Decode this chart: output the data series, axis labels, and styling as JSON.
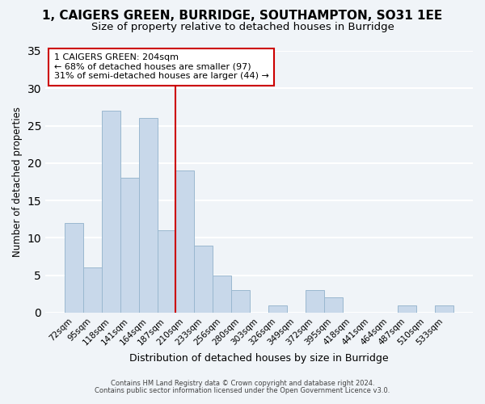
{
  "title1": "1, CAIGERS GREEN, BURRIDGE, SOUTHAMPTON, SO31 1EE",
  "title2": "Size of property relative to detached houses in Burridge",
  "xlabel": "Distribution of detached houses by size in Burridge",
  "ylabel": "Number of detached properties",
  "bar_labels": [
    "72sqm",
    "95sqm",
    "118sqm",
    "141sqm",
    "164sqm",
    "187sqm",
    "210sqm",
    "233sqm",
    "256sqm",
    "280sqm",
    "303sqm",
    "326sqm",
    "349sqm",
    "372sqm",
    "395sqm",
    "418sqm",
    "441sqm",
    "464sqm",
    "487sqm",
    "510sqm",
    "533sqm"
  ],
  "bar_values": [
    12,
    6,
    27,
    18,
    26,
    11,
    19,
    9,
    5,
    3,
    0,
    1,
    0,
    3,
    2,
    0,
    0,
    0,
    1,
    0,
    1
  ],
  "bar_color": "#c8d8ea",
  "bar_edge_color": "#9ab8d0",
  "vline_color": "#cc0000",
  "ylim": [
    0,
    35
  ],
  "yticks": [
    0,
    5,
    10,
    15,
    20,
    25,
    30,
    35
  ],
  "annotation_title": "1 CAIGERS GREEN: 204sqm",
  "annotation_line1": "← 68% of detached houses are smaller (97)",
  "annotation_line2": "31% of semi-detached houses are larger (44) →",
  "footer1": "Contains HM Land Registry data © Crown copyright and database right 2024.",
  "footer2": "Contains public sector information licensed under the Open Government Licence v3.0.",
  "background_color": "#f0f4f8",
  "grid_color": "#ffffff",
  "title1_fontsize": 11,
  "title2_fontsize": 9.5
}
